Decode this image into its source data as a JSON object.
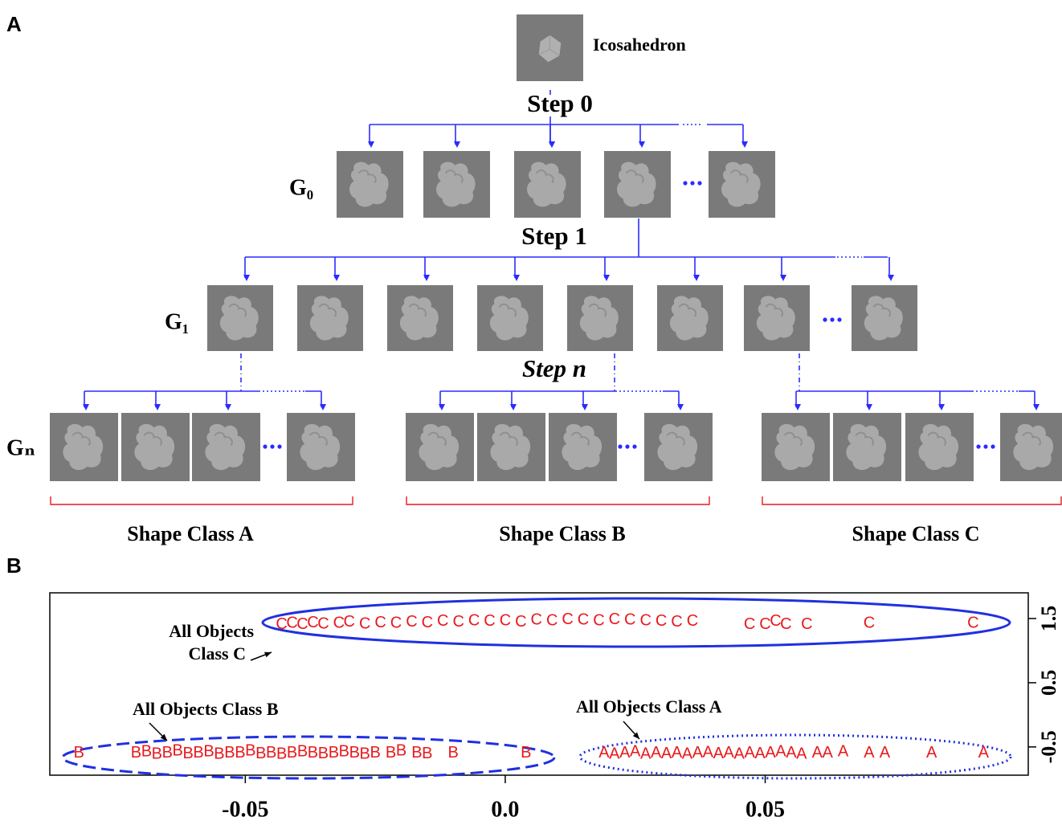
{
  "panel_a": {
    "label": "A",
    "root_label": "Icosahedron",
    "steps": [
      "Step 0",
      "Step 1",
      "Step n"
    ],
    "generations": [
      "G₀",
      "G₁",
      "Gₙ"
    ],
    "classes": [
      "Shape Class A",
      "Shape Class B",
      "Shape Class C"
    ]
  },
  "chart_data": {
    "type": "scatter",
    "panel_label": "B",
    "series": [
      {
        "name": "A",
        "color": "#e8191c",
        "x": [
          0.019,
          0.021,
          0.023,
          0.025,
          0.027,
          0.029,
          0.031,
          0.033,
          0.035,
          0.037,
          0.039,
          0.041,
          0.043,
          0.045,
          0.047,
          0.049,
          0.051,
          0.053,
          0.055,
          0.057,
          0.06,
          0.062,
          0.065,
          0.07,
          0.073,
          0.082,
          0.092
        ],
        "values": [
          -0.6,
          -0.62,
          -0.6,
          -0.58,
          -0.62,
          -0.6,
          -0.61,
          -0.6,
          -0.62,
          -0.6,
          -0.59,
          -0.61,
          -0.6,
          -0.62,
          -0.6,
          -0.61,
          -0.6,
          -0.58,
          -0.6,
          -0.62,
          -0.6,
          -0.6,
          -0.58,
          -0.6,
          -0.6,
          -0.6,
          -0.6
        ]
      },
      {
        "name": "B",
        "color": "#e8191c",
        "x": [
          -0.082,
          -0.071,
          -0.069,
          -0.067,
          -0.065,
          -0.063,
          -0.061,
          -0.059,
          -0.057,
          -0.055,
          -0.053,
          -0.051,
          -0.049,
          -0.047,
          -0.045,
          -0.043,
          -0.041,
          -0.039,
          -0.037,
          -0.035,
          -0.033,
          -0.031,
          -0.029,
          -0.027,
          -0.025,
          -0.022,
          -0.02,
          -0.017,
          -0.015,
          -0.01,
          0.004
        ],
        "values": [
          -0.6,
          -0.6,
          -0.58,
          -0.62,
          -0.6,
          -0.57,
          -0.61,
          -0.6,
          -0.58,
          -0.62,
          -0.6,
          -0.6,
          -0.57,
          -0.61,
          -0.6,
          -0.62,
          -0.6,
          -0.58,
          -0.6,
          -0.61,
          -0.6,
          -0.58,
          -0.6,
          -0.62,
          -0.6,
          -0.6,
          -0.57,
          -0.6,
          -0.61,
          -0.6,
          -0.6
        ]
      },
      {
        "name": "C",
        "color": "#e8191c",
        "x": [
          -0.043,
          -0.041,
          -0.039,
          -0.037,
          -0.035,
          -0.032,
          -0.03,
          -0.027,
          -0.024,
          -0.021,
          -0.018,
          -0.015,
          -0.012,
          -0.009,
          -0.006,
          -0.003,
          0,
          0.003,
          0.006,
          0.009,
          0.012,
          0.015,
          0.018,
          0.021,
          0.024,
          0.027,
          0.03,
          0.033,
          0.036,
          0.047,
          0.05,
          0.052,
          0.054,
          0.058,
          0.07,
          0.09
        ],
        "values": [
          1.4,
          1.42,
          1.4,
          1.43,
          1.41,
          1.42,
          1.44,
          1.41,
          1.43,
          1.42,
          1.44,
          1.43,
          1.45,
          1.44,
          1.46,
          1.45,
          1.46,
          1.44,
          1.47,
          1.46,
          1.48,
          1.47,
          1.46,
          1.48,
          1.47,
          1.46,
          1.45,
          1.44,
          1.45,
          1.4,
          1.4,
          1.45,
          1.4,
          1.4,
          1.42,
          1.42
        ]
      }
    ],
    "annotations": [
      "All Objects",
      "Class C",
      "All Objects Class B",
      "All Objects Class A"
    ],
    "xlim": [
      -0.0876,
      0.1006
    ],
    "ylim": [
      -0.94,
      1.9
    ],
    "xticks": [
      -0.05,
      {
        "value": 0,
        "label": "0.0"
      },
      0.05
    ],
    "yticks": [
      -0.5,
      0.5,
      1.5
    ]
  }
}
